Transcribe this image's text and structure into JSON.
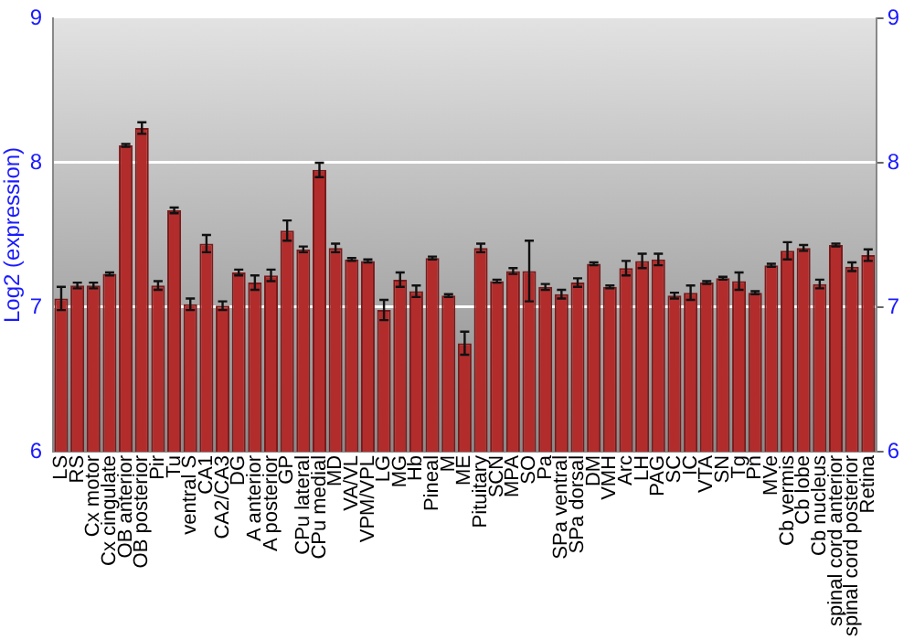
{
  "chart_data": {
    "type": "bar",
    "ylabel": "Log2 (expression)",
    "categories": [
      "LS",
      "RS",
      "Cx motor",
      "Cx cingulate",
      "OB anterior",
      "OB posterior",
      "Pir",
      "Tu",
      "ventral S",
      "CA1",
      "CA2/CA3",
      "DG",
      "A anterior",
      "A posterior",
      "GP",
      "CPu lateral",
      "CPu medial",
      "MD",
      "VA/VL",
      "VPM/VPL",
      "LG",
      "MG",
      "Hb",
      "Pineal",
      "M",
      "ME",
      "Pituitary",
      "SCN",
      "MPA",
      "SO",
      "Pa",
      "SPa ventral",
      "SPa dorsal",
      "DM",
      "VMH",
      "Arc",
      "LH",
      "PAG",
      "SC",
      "IC",
      "VTA",
      "SN",
      "Tg",
      "Pn",
      "MVe",
      "Cb vermis",
      "Cb lobe",
      "Cb nucleus",
      "spinal cord anterior",
      "spinal cord posterior",
      "Retina"
    ],
    "values": [
      7.06,
      7.15,
      7.15,
      7.23,
      8.12,
      8.24,
      7.15,
      7.67,
      7.02,
      7.44,
      7.01,
      7.24,
      7.17,
      7.22,
      7.53,
      7.4,
      7.95,
      7.41,
      7.33,
      7.32,
      6.98,
      7.19,
      7.11,
      7.34,
      7.08,
      6.75,
      7.41,
      7.18,
      7.25,
      7.25,
      7.14,
      7.09,
      7.17,
      7.3,
      7.14,
      7.27,
      7.32,
      7.33,
      7.08,
      7.1,
      7.17,
      7.2,
      7.18,
      7.1,
      7.29,
      7.39,
      7.41,
      7.16,
      7.43,
      7.28,
      7.36
    ],
    "errors": [
      0.08,
      0.02,
      0.02,
      0.01,
      0.01,
      0.04,
      0.03,
      0.02,
      0.04,
      0.06,
      0.03,
      0.02,
      0.05,
      0.04,
      0.07,
      0.02,
      0.05,
      0.03,
      0.01,
      0.01,
      0.07,
      0.05,
      0.04,
      0.01,
      0.01,
      0.08,
      0.03,
      0.01,
      0.02,
      0.21,
      0.02,
      0.03,
      0.03,
      0.01,
      0.01,
      0.05,
      0.05,
      0.04,
      0.02,
      0.05,
      0.01,
      0.01,
      0.06,
      0.01,
      0.01,
      0.06,
      0.02,
      0.03,
      0.01,
      0.03,
      0.04
    ],
    "color": "#b22c2c",
    "ylim": [
      6,
      9
    ],
    "yticks": [
      6,
      7,
      8,
      9
    ],
    "y2lim": [
      6,
      9
    ],
    "y2ticks": [
      6,
      7,
      8,
      9
    ],
    "grid": "y",
    "legend": false
  }
}
